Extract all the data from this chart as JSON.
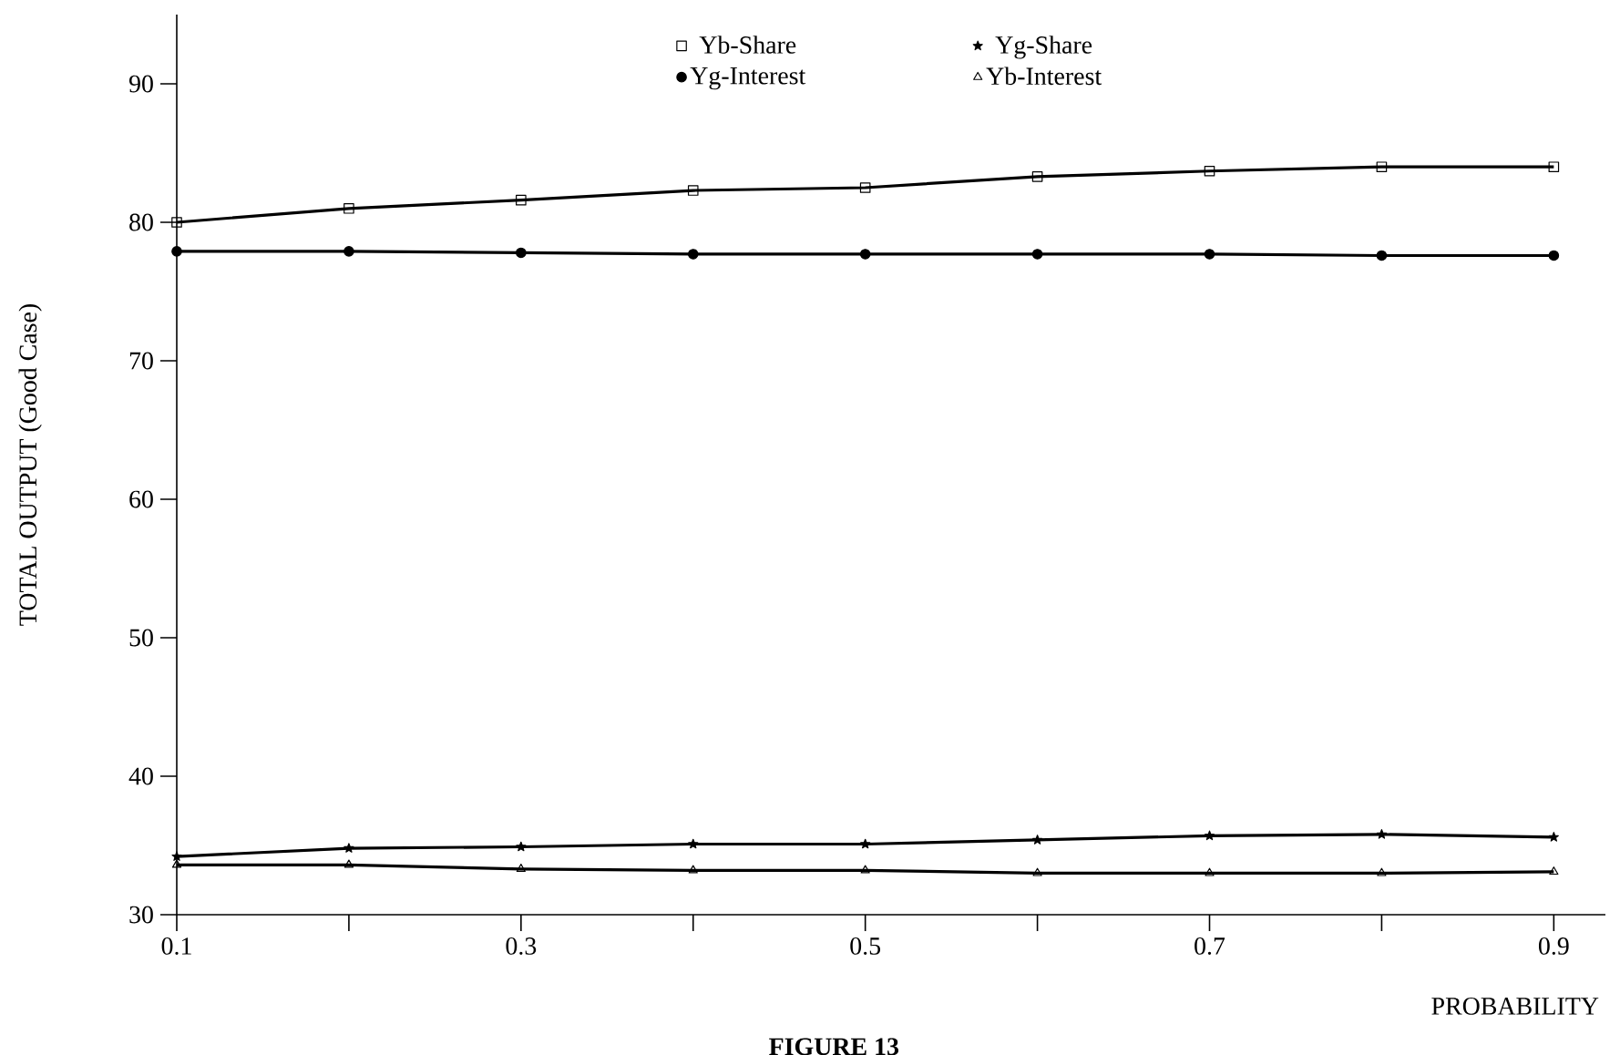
{
  "chart_data": {
    "type": "line",
    "ylabel": "TOTAL OUTPUT (Good Case)",
    "xlabel": "PROBABILITY",
    "annotations": [
      "FIGURE 13"
    ],
    "x": [
      0.1,
      0.2,
      0.3,
      0.4,
      0.5,
      0.6,
      0.7,
      0.8,
      0.9
    ],
    "series": [
      {
        "name": "Yb-Share",
        "color": "#000000",
        "marker": "square",
        "values": [
          80,
          81,
          81.6,
          82.3,
          82.5,
          83.3,
          83.7,
          84,
          84
        ]
      },
      {
        "name": "Yg-Share",
        "color": "#000000",
        "marker": "star",
        "values": [
          34.2,
          34.8,
          34.9,
          35.1,
          35.1,
          35.4,
          35.7,
          35.8,
          35.6
        ]
      },
      {
        "name": "Yg-Interest",
        "color": "#000000",
        "marker": "circle",
        "values": [
          77.9,
          77.9,
          77.8,
          77.7,
          77.7,
          77.7,
          77.7,
          77.6,
          77.6
        ]
      },
      {
        "name": "Yb-Interest",
        "color": "#000000",
        "marker": "triangle",
        "values": [
          33.6,
          33.6,
          33.3,
          33.2,
          33.2,
          33,
          33,
          33,
          33.1
        ]
      }
    ],
    "xlim": [
      0.1,
      0.93
    ],
    "ylim": [
      30,
      95
    ],
    "xticks": [
      0.1,
      {
        "value": 0.2,
        "label": null
      },
      0.3,
      {
        "value": 0.4,
        "label": null
      },
      0.5,
      {
        "value": 0.6,
        "label": null
      },
      0.7,
      {
        "value": 0.8,
        "label": null
      },
      0.9
    ],
    "yticks": [
      30,
      40,
      50,
      60,
      70,
      80,
      90
    ],
    "legend": "top",
    "grid": false,
    "line_style": "solid"
  }
}
